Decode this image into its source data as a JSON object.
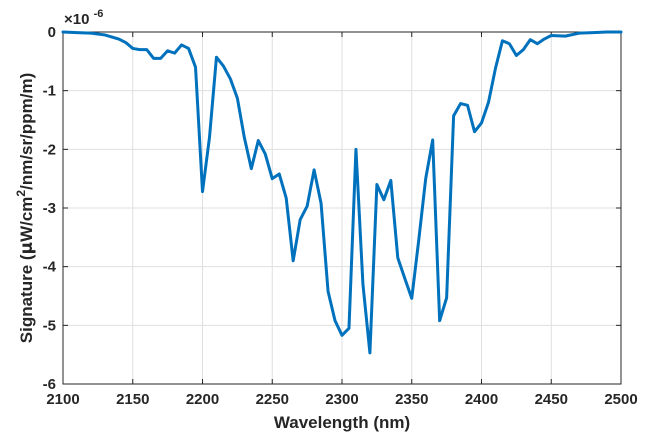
{
  "chart_data": {
    "type": "line",
    "title": "",
    "xlabel": "Wavelength (nm)",
    "ylabel": "Signature (μW/cm²/nm/sr/ppm/m)",
    "ylabel_parts": {
      "pre": "Signature (",
      "mu": "μ",
      "mid": "W/cm",
      "sup": "2",
      "post": "/nm/sr/ppm/m)"
    },
    "exponent_label": {
      "base": "×10",
      "exp": "-6"
    },
    "xlim": [
      2100,
      2500
    ],
    "ylim": [
      -6,
      0
    ],
    "xticks": [
      2100,
      2150,
      2200,
      2250,
      2300,
      2350,
      2400,
      2450,
      2500
    ],
    "yticks": [
      -6,
      -5,
      -4,
      -3,
      -2,
      -1,
      0
    ],
    "grid": true,
    "line_color": "#0072BD",
    "series": [
      {
        "x": [
          2100,
          2110,
          2120,
          2130,
          2140,
          2145,
          2150,
          2155,
          2160,
          2165,
          2170,
          2175,
          2180,
          2185,
          2190,
          2195,
          2200,
          2205,
          2210,
          2215,
          2220,
          2225,
          2230,
          2235,
          2240,
          2245,
          2250,
          2255,
          2260,
          2265,
          2270,
          2275,
          2280,
          2285,
          2290,
          2295,
          2300,
          2305,
          2310,
          2315,
          2320,
          2325,
          2330,
          2335,
          2340,
          2345,
          2350,
          2355,
          2360,
          2365,
          2370,
          2375,
          2380,
          2385,
          2390,
          2395,
          2400,
          2405,
          2410,
          2415,
          2420,
          2425,
          2430,
          2435,
          2440,
          2445,
          2450,
          2460,
          2470,
          2480,
          2490,
          2500
        ],
        "y": [
          0,
          -0.01,
          -0.02,
          -0.05,
          -0.12,
          -0.18,
          -0.28,
          -0.3,
          -0.3,
          -0.45,
          -0.45,
          -0.32,
          -0.36,
          -0.22,
          -0.28,
          -0.6,
          -2.72,
          -1.8,
          -0.43,
          -0.58,
          -0.8,
          -1.13,
          -1.8,
          -2.33,
          -1.85,
          -2.08,
          -2.5,
          -2.42,
          -2.83,
          -3.9,
          -3.2,
          -2.97,
          -2.35,
          -2.92,
          -4.42,
          -4.92,
          -5.17,
          -5.05,
          -2.0,
          -4.3,
          -5.47,
          -2.6,
          -2.86,
          -2.53,
          -3.85,
          -4.2,
          -4.54,
          -3.55,
          -2.5,
          -1.84,
          -4.92,
          -4.53,
          -1.43,
          -1.22,
          -1.25,
          -1.7,
          -1.55,
          -1.2,
          -0.62,
          -0.15,
          -0.2,
          -0.4,
          -0.3,
          -0.13,
          -0.2,
          -0.12,
          -0.06,
          -0.07,
          -0.02,
          -0.01,
          0,
          0
        ]
      }
    ]
  }
}
